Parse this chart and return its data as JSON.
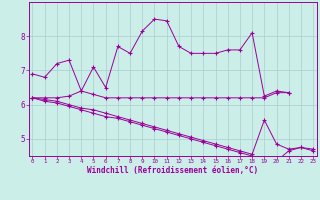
{
  "xlabel": "Windchill (Refroidissement éolien,°C)",
  "background_color": "#cceee8",
  "line_color": "#990099",
  "grid_color": "#aacccc",
  "x_hours": [
    0,
    1,
    2,
    3,
    4,
    5,
    6,
    7,
    8,
    9,
    10,
    11,
    12,
    13,
    14,
    15,
    16,
    17,
    18,
    19,
    20,
    21,
    22,
    23
  ],
  "series1": [
    6.9,
    6.8,
    7.2,
    7.3,
    6.4,
    7.1,
    6.5,
    7.7,
    7.5,
    8.15,
    8.5,
    8.45,
    7.7,
    7.5,
    7.5,
    7.5,
    7.6,
    7.6,
    8.1,
    6.25,
    6.4,
    6.35,
    null,
    null
  ],
  "series2": [
    6.2,
    6.2,
    6.2,
    6.25,
    6.4,
    6.3,
    6.2,
    6.2,
    6.2,
    6.2,
    6.2,
    6.2,
    6.2,
    6.2,
    6.2,
    6.2,
    6.2,
    6.2,
    6.2,
    6.2,
    6.35,
    6.35,
    null,
    null
  ],
  "series3": [
    6.2,
    6.15,
    6.1,
    6.0,
    5.9,
    5.85,
    5.75,
    5.65,
    5.55,
    5.45,
    5.35,
    5.25,
    5.15,
    5.05,
    4.95,
    4.85,
    4.75,
    4.65,
    4.55,
    5.55,
    4.85,
    4.7,
    4.75,
    4.7
  ],
  "series4": [
    6.2,
    6.1,
    6.05,
    5.95,
    5.85,
    5.75,
    5.65,
    5.6,
    5.5,
    5.4,
    5.3,
    5.2,
    5.1,
    5.0,
    4.9,
    4.8,
    4.7,
    4.6,
    4.5,
    4.4,
    4.35,
    4.65,
    4.75,
    4.65
  ],
  "ylim": [
    4.5,
    9.0
  ],
  "yticks": [
    5,
    6,
    7,
    8
  ],
  "xlim": [
    -0.3,
    23.3
  ]
}
